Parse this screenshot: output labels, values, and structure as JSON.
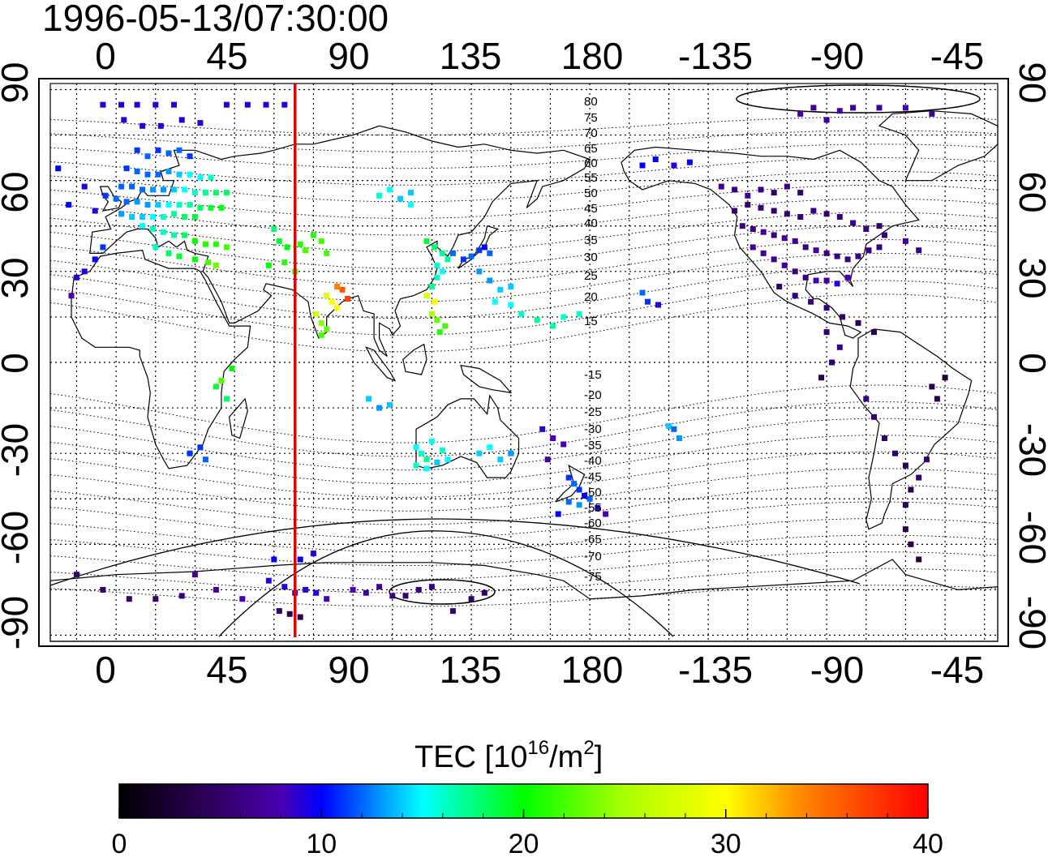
{
  "timestamp": "1996-05-13/07:30:00",
  "axes": {
    "x_ticks": [
      "0",
      "45",
      "90",
      "135",
      "180",
      "-135",
      "-90",
      "-45"
    ],
    "y_ticks_left": [
      "90",
      "60",
      "30",
      "0",
      "-30",
      "-60",
      "-90"
    ],
    "y_ticks_right": [
      "90",
      "60",
      "30",
      "0",
      "-30",
      "-60",
      "-90"
    ]
  },
  "map": {
    "lon_range": [
      -25,
      335
    ],
    "lat_range": [
      -92,
      92
    ],
    "meridian_marker_lon": 68,
    "marker_color": "#e00000",
    "grid": true
  },
  "magnetic_latitude_labels": [
    "80",
    "75",
    "70",
    "65",
    "60",
    "55",
    "50",
    "45",
    "40",
    "35",
    "30",
    "25",
    "20",
    "15",
    "-15",
    "-20",
    "-25",
    "-30",
    "-35",
    "-40",
    "-45",
    "-50",
    "-55",
    "-60",
    "-65",
    "-70",
    "-75"
  ],
  "colorbar": {
    "title_prefix": "TEC  [10",
    "title_exp1": "16",
    "title_mid": "/m",
    "title_exp2": "2",
    "title_suffix": "]",
    "min": 0,
    "max": 40,
    "tick_labels": [
      "0",
      "10",
      "20",
      "30",
      "40"
    ]
  },
  "tec_points": [
    [
      -5,
      85,
      9
    ],
    [
      2,
      85,
      9
    ],
    [
      8,
      85,
      9
    ],
    [
      15,
      85,
      9
    ],
    [
      22,
      85,
      9
    ],
    [
      42,
      85,
      9
    ],
    [
      50,
      85,
      9
    ],
    [
      57,
      85,
      9
    ],
    [
      64,
      85,
      9
    ],
    [
      3,
      80,
      9
    ],
    [
      10,
      78,
      9
    ],
    [
      17,
      78,
      9
    ],
    [
      25,
      80,
      9
    ],
    [
      32,
      79,
      9
    ],
    [
      8,
      70,
      11
    ],
    [
      12,
      68,
      12
    ],
    [
      16,
      70,
      11
    ],
    [
      20,
      69,
      12
    ],
    [
      24,
      70,
      12
    ],
    [
      28,
      68,
      11
    ],
    [
      4,
      64,
      11
    ],
    [
      8,
      63,
      12
    ],
    [
      12,
      62,
      12
    ],
    [
      16,
      62,
      12
    ],
    [
      20,
      63,
      13
    ],
    [
      24,
      62,
      14
    ],
    [
      28,
      62,
      15
    ],
    [
      32,
      61,
      15
    ],
    [
      36,
      61,
      16
    ],
    [
      2,
      58,
      12
    ],
    [
      6,
      58,
      12
    ],
    [
      10,
      57,
      12
    ],
    [
      14,
      57,
      13
    ],
    [
      18,
      57,
      13
    ],
    [
      22,
      57,
      14
    ],
    [
      26,
      57,
      15
    ],
    [
      30,
      56,
      16
    ],
    [
      34,
      56,
      17
    ],
    [
      38,
      56,
      18
    ],
    [
      42,
      56,
      18
    ],
    [
      -4,
      55,
      11
    ],
    [
      0,
      54,
      12
    ],
    [
      4,
      53,
      12
    ],
    [
      8,
      53,
      13
    ],
    [
      12,
      52,
      13
    ],
    [
      16,
      52,
      14
    ],
    [
      20,
      52,
      15
    ],
    [
      24,
      52,
      16
    ],
    [
      28,
      52,
      17
    ],
    [
      32,
      51,
      18
    ],
    [
      36,
      51,
      19
    ],
    [
      40,
      51,
      20
    ],
    [
      2,
      49,
      13
    ],
    [
      6,
      48,
      14
    ],
    [
      10,
      48,
      14
    ],
    [
      14,
      48,
      15
    ],
    [
      18,
      48,
      16
    ],
    [
      22,
      49,
      17
    ],
    [
      26,
      48,
      18
    ],
    [
      30,
      48,
      19
    ],
    [
      -22,
      64,
      10
    ],
    [
      -12,
      58,
      9
    ],
    [
      -18,
      52,
      10
    ],
    [
      -8,
      50,
      9
    ],
    [
      10,
      45,
      15
    ],
    [
      14,
      44,
      16
    ],
    [
      18,
      43,
      16
    ],
    [
      22,
      42,
      17
    ],
    [
      26,
      42,
      18
    ],
    [
      30,
      40,
      20
    ],
    [
      34,
      39,
      21
    ],
    [
      38,
      39,
      21
    ],
    [
      42,
      38,
      22
    ],
    [
      15,
      38,
      16
    ],
    [
      20,
      36,
      18
    ],
    [
      24,
      35,
      19
    ],
    [
      30,
      34,
      20
    ],
    [
      35,
      33,
      22
    ],
    [
      38,
      32,
      23
    ],
    [
      -5,
      38,
      11
    ],
    [
      -8,
      34,
      10
    ],
    [
      -12,
      30,
      9
    ],
    [
      -15,
      28,
      9
    ],
    [
      -17,
      22,
      8
    ],
    [
      60,
      44,
      18
    ],
    [
      62,
      40,
      19
    ],
    [
      65,
      38,
      20
    ],
    [
      70,
      39,
      21
    ],
    [
      72,
      37,
      22
    ],
    [
      75,
      42,
      21
    ],
    [
      78,
      40,
      22
    ],
    [
      80,
      36,
      22
    ],
    [
      58,
      32,
      20
    ],
    [
      64,
      33,
      21
    ],
    [
      68,
      30,
      22
    ],
    [
      80,
      22,
      28
    ],
    [
      82,
      20,
      30
    ],
    [
      84,
      25,
      34
    ],
    [
      86,
      24,
      36
    ],
    [
      88,
      21,
      37
    ],
    [
      84,
      18,
      30
    ],
    [
      76,
      16,
      27
    ],
    [
      78,
      13,
      24
    ],
    [
      80,
      11,
      23
    ],
    [
      78,
      9,
      22
    ],
    [
      100,
      55,
      16
    ],
    [
      104,
      57,
      15
    ],
    [
      108,
      54,
      14
    ],
    [
      112,
      56,
      14
    ],
    [
      112,
      52,
      15
    ],
    [
      118,
      40,
      19
    ],
    [
      121,
      38,
      18
    ],
    [
      124,
      36,
      17
    ],
    [
      126,
      34,
      17
    ],
    [
      122,
      32,
      16
    ],
    [
      124,
      30,
      15
    ],
    [
      122,
      28,
      16
    ],
    [
      120,
      25,
      17
    ],
    [
      118,
      22,
      28
    ],
    [
      121,
      20,
      30
    ],
    [
      120,
      16,
      25
    ],
    [
      122,
      14,
      23
    ],
    [
      125,
      12,
      22
    ],
    [
      123,
      10,
      21
    ],
    [
      128,
      36,
      12
    ],
    [
      132,
      34,
      11
    ],
    [
      135,
      35,
      12
    ],
    [
      138,
      37,
      11
    ],
    [
      140,
      38,
      10
    ],
    [
      142,
      36,
      12
    ],
    [
      138,
      30,
      13
    ],
    [
      142,
      27,
      13
    ],
    [
      146,
      24,
      14
    ],
    [
      150,
      25,
      14
    ],
    [
      144,
      20,
      15
    ],
    [
      150,
      19,
      15
    ],
    [
      154,
      16,
      16
    ],
    [
      160,
      14,
      17
    ],
    [
      166,
      12,
      17
    ],
    [
      170,
      15,
      16
    ],
    [
      176,
      16,
      16
    ],
    [
      44,
      -2,
      20
    ],
    [
      40,
      -6,
      22
    ],
    [
      38,
      -8,
      19
    ],
    [
      42,
      -12,
      18
    ],
    [
      32,
      -28,
      11
    ],
    [
      34,
      -32,
      12
    ],
    [
      28,
      -30,
      11
    ],
    [
      96,
      -12,
      14
    ],
    [
      100,
      -15,
      13
    ],
    [
      104,
      -14,
      14
    ],
    [
      114,
      -28,
      15
    ],
    [
      116,
      -30,
      16
    ],
    [
      118,
      -32,
      17
    ],
    [
      118,
      -35,
      15
    ],
    [
      122,
      -33,
      14
    ],
    [
      126,
      -32,
      15
    ],
    [
      114,
      -34,
      16
    ],
    [
      120,
      -26,
      15
    ],
    [
      124,
      -29,
      16
    ],
    [
      138,
      -30,
      14
    ],
    [
      142,
      -28,
      15
    ],
    [
      146,
      -32,
      14
    ],
    [
      150,
      -30,
      13
    ],
    [
      162,
      -22,
      9
    ],
    [
      166,
      -25,
      8
    ],
    [
      170,
      -27,
      8
    ],
    [
      164,
      -32,
      7
    ],
    [
      172,
      -38,
      11
    ],
    [
      174,
      -40,
      12
    ],
    [
      176,
      -42,
      11
    ],
    [
      178,
      -44,
      10
    ],
    [
      172,
      -46,
      12
    ],
    [
      176,
      -47,
      13
    ],
    [
      180,
      -45,
      12
    ],
    [
      183,
      -48,
      9
    ],
    [
      186,
      -50,
      8
    ],
    [
      168,
      -50,
      10
    ],
    [
      210,
      -21,
      14
    ],
    [
      214,
      -25,
      13
    ],
    [
      212,
      -22,
      12
    ],
    [
      200,
      23,
      12
    ],
    [
      202,
      20,
      11
    ],
    [
      206,
      19,
      9
    ],
    [
      200,
      65,
      10
    ],
    [
      205,
      67,
      10
    ],
    [
      212,
      65,
      9
    ],
    [
      218,
      66,
      10
    ],
    [
      230,
      58,
      7
    ],
    [
      235,
      57,
      6
    ],
    [
      240,
      55,
      7
    ],
    [
      245,
      57,
      6
    ],
    [
      250,
      56,
      5
    ],
    [
      255,
      58,
      6
    ],
    [
      260,
      56,
      5
    ],
    [
      235,
      50,
      5
    ],
    [
      240,
      52,
      5
    ],
    [
      245,
      51,
      6
    ],
    [
      250,
      50,
      5
    ],
    [
      255,
      49,
      5
    ],
    [
      260,
      48,
      6
    ],
    [
      265,
      50,
      6
    ],
    [
      270,
      49,
      5
    ],
    [
      275,
      48,
      6
    ],
    [
      280,
      46,
      6
    ],
    [
      285,
      44,
      6
    ],
    [
      290,
      45,
      5
    ],
    [
      238,
      45,
      6
    ],
    [
      242,
      44,
      6
    ],
    [
      246,
      43,
      7
    ],
    [
      250,
      42,
      6
    ],
    [
      254,
      41,
      7
    ],
    [
      258,
      40,
      7
    ],
    [
      262,
      38,
      6
    ],
    [
      266,
      37,
      7
    ],
    [
      270,
      36,
      6
    ],
    [
      274,
      35,
      6
    ],
    [
      278,
      34,
      6
    ],
    [
      282,
      35,
      6
    ],
    [
      286,
      37,
      6
    ],
    [
      290,
      38,
      6
    ],
    [
      242,
      38,
      7
    ],
    [
      246,
      36,
      7
    ],
    [
      250,
      34,
      7
    ],
    [
      254,
      32,
      7
    ],
    [
      258,
      30,
      6
    ],
    [
      262,
      28,
      6
    ],
    [
      266,
      27,
      8
    ],
    [
      270,
      27,
      7
    ],
    [
      274,
      26,
      9
    ],
    [
      278,
      28,
      8
    ],
    [
      252,
      25,
      5
    ],
    [
      258,
      22,
      6
    ],
    [
      264,
      20,
      6
    ],
    [
      270,
      18,
      6
    ],
    [
      276,
      15,
      5
    ],
    [
      282,
      13,
      4
    ],
    [
      288,
      10,
      4
    ],
    [
      270,
      80,
      7
    ],
    [
      275,
      83,
      8
    ],
    [
      280,
      84,
      7
    ],
    [
      290,
      84,
      7
    ],
    [
      300,
      84,
      8
    ],
    [
      310,
      82,
      7
    ],
    [
      260,
      82,
      7
    ],
    [
      265,
      84,
      7
    ],
    [
      300,
      40,
      7
    ],
    [
      305,
      37,
      6
    ],
    [
      292,
      42,
      6
    ],
    [
      270,
      10,
      5
    ],
    [
      275,
      5,
      6
    ],
    [
      268,
      -5,
      4
    ],
    [
      272,
      0,
      5
    ],
    [
      285,
      -12,
      6
    ],
    [
      288,
      -18,
      5
    ],
    [
      292,
      -25,
      5
    ],
    [
      296,
      -30,
      5
    ],
    [
      300,
      -34,
      4
    ],
    [
      305,
      -38,
      5
    ],
    [
      302,
      -42,
      4
    ],
    [
      300,
      -47,
      4
    ],
    [
      308,
      -32,
      5
    ],
    [
      310,
      -8,
      4
    ],
    [
      315,
      -5,
      3
    ],
    [
      312,
      -12,
      4
    ],
    [
      300,
      -55,
      4
    ],
    [
      302,
      -60,
      4
    ],
    [
      305,
      -65,
      3
    ],
    [
      -15,
      -70,
      5
    ],
    [
      -5,
      -75,
      5
    ],
    [
      5,
      -78,
      5
    ],
    [
      15,
      -78,
      5
    ],
    [
      25,
      -77,
      6
    ],
    [
      30,
      -70,
      7
    ],
    [
      38,
      -75,
      7
    ],
    [
      48,
      -78,
      8
    ],
    [
      58,
      -72,
      9
    ],
    [
      64,
      -74,
      9
    ],
    [
      68,
      -76,
      8
    ],
    [
      72,
      -75,
      9
    ],
    [
      76,
      -76,
      9
    ],
    [
      80,
      -78,
      8
    ],
    [
      62,
      -82,
      5
    ],
    [
      66,
      -83,
      4
    ],
    [
      70,
      -84,
      4
    ],
    [
      60,
      -65,
      10
    ],
    [
      70,
      -65,
      10
    ],
    [
      75,
      -63,
      9
    ],
    [
      90,
      -75,
      8
    ],
    [
      95,
      -76,
      7
    ],
    [
      100,
      -74,
      7
    ],
    [
      105,
      -77,
      6
    ],
    [
      110,
      -77,
      6
    ],
    [
      115,
      -75,
      6
    ],
    [
      120,
      -74,
      6
    ],
    [
      135,
      -78,
      5
    ],
    [
      140,
      -76,
      5
    ],
    [
      128,
      -82,
      6
    ]
  ]
}
